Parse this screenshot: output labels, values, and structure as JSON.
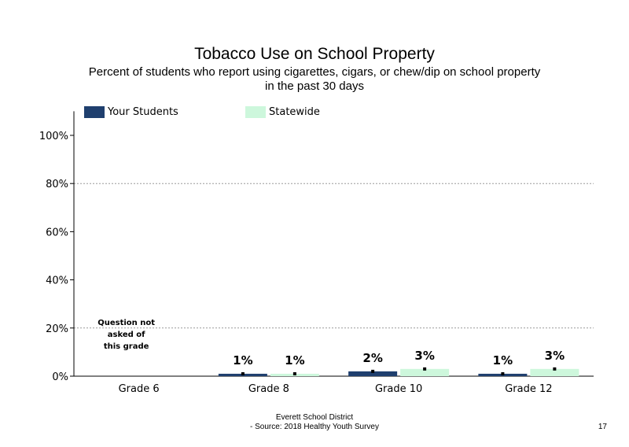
{
  "chart_data": {
    "type": "bar",
    "title": "Tobacco Use on School Property",
    "subtitle": [
      "Percent of students who report using cigarettes, cigars, or chew/dip on school property",
      "in the past 30 days"
    ],
    "categories": [
      "Grade 6",
      "Grade 8",
      "Grade 10",
      "Grade 12"
    ],
    "series": [
      {
        "name": "Your Students",
        "color": "#1f3f6e",
        "values": [
          null,
          1,
          2,
          1
        ],
        "labels": [
          "",
          "1%",
          "2%",
          "1%"
        ]
      },
      {
        "name": "Statewide",
        "color": "#cdf7dc",
        "values": [
          null,
          1,
          3,
          3
        ],
        "labels": [
          "",
          "1%",
          "3%",
          "3%"
        ]
      }
    ],
    "yticks": [
      "0%",
      "20%",
      "40%",
      "60%",
      "80%",
      "100%"
    ],
    "ylim": [
      0,
      110
    ],
    "grid": true,
    "legend_position": "top-left",
    "annotations": [
      {
        "category": "Grade 6",
        "lines": [
          "Question not",
          "asked of",
          "this grade"
        ]
      }
    ]
  },
  "footer": {
    "line1": "Everett School District",
    "line2": "- Source: 2018 Healthy  Youth Survey",
    "page_number": "17"
  }
}
